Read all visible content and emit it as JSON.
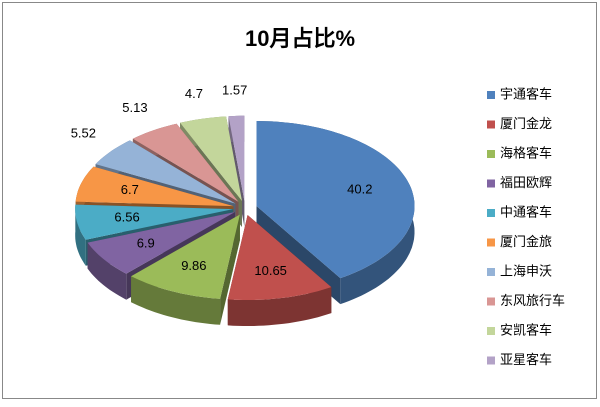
{
  "chart_data": {
    "type": "pie3d",
    "title": "10月占比%",
    "categories": [
      "宇通客车",
      "厦门金龙",
      "海格客车",
      "福田欧辉",
      "中通客车",
      "厦门金旅",
      "上海申沃",
      "东风旅行车",
      "安凯客车",
      "亚星客车"
    ],
    "values": [
      40.2,
      10.65,
      9.86,
      6.9,
      6.56,
      6.7,
      5.52,
      5.13,
      4.7,
      1.57
    ],
    "colors": [
      "#4f81bd",
      "#c0504d",
      "#9bbb59",
      "#8064a2",
      "#4bacc6",
      "#f79646",
      "#95b3d7",
      "#d99694",
      "#c3d69b",
      "#b3a2c7"
    ],
    "legend": "right"
  }
}
